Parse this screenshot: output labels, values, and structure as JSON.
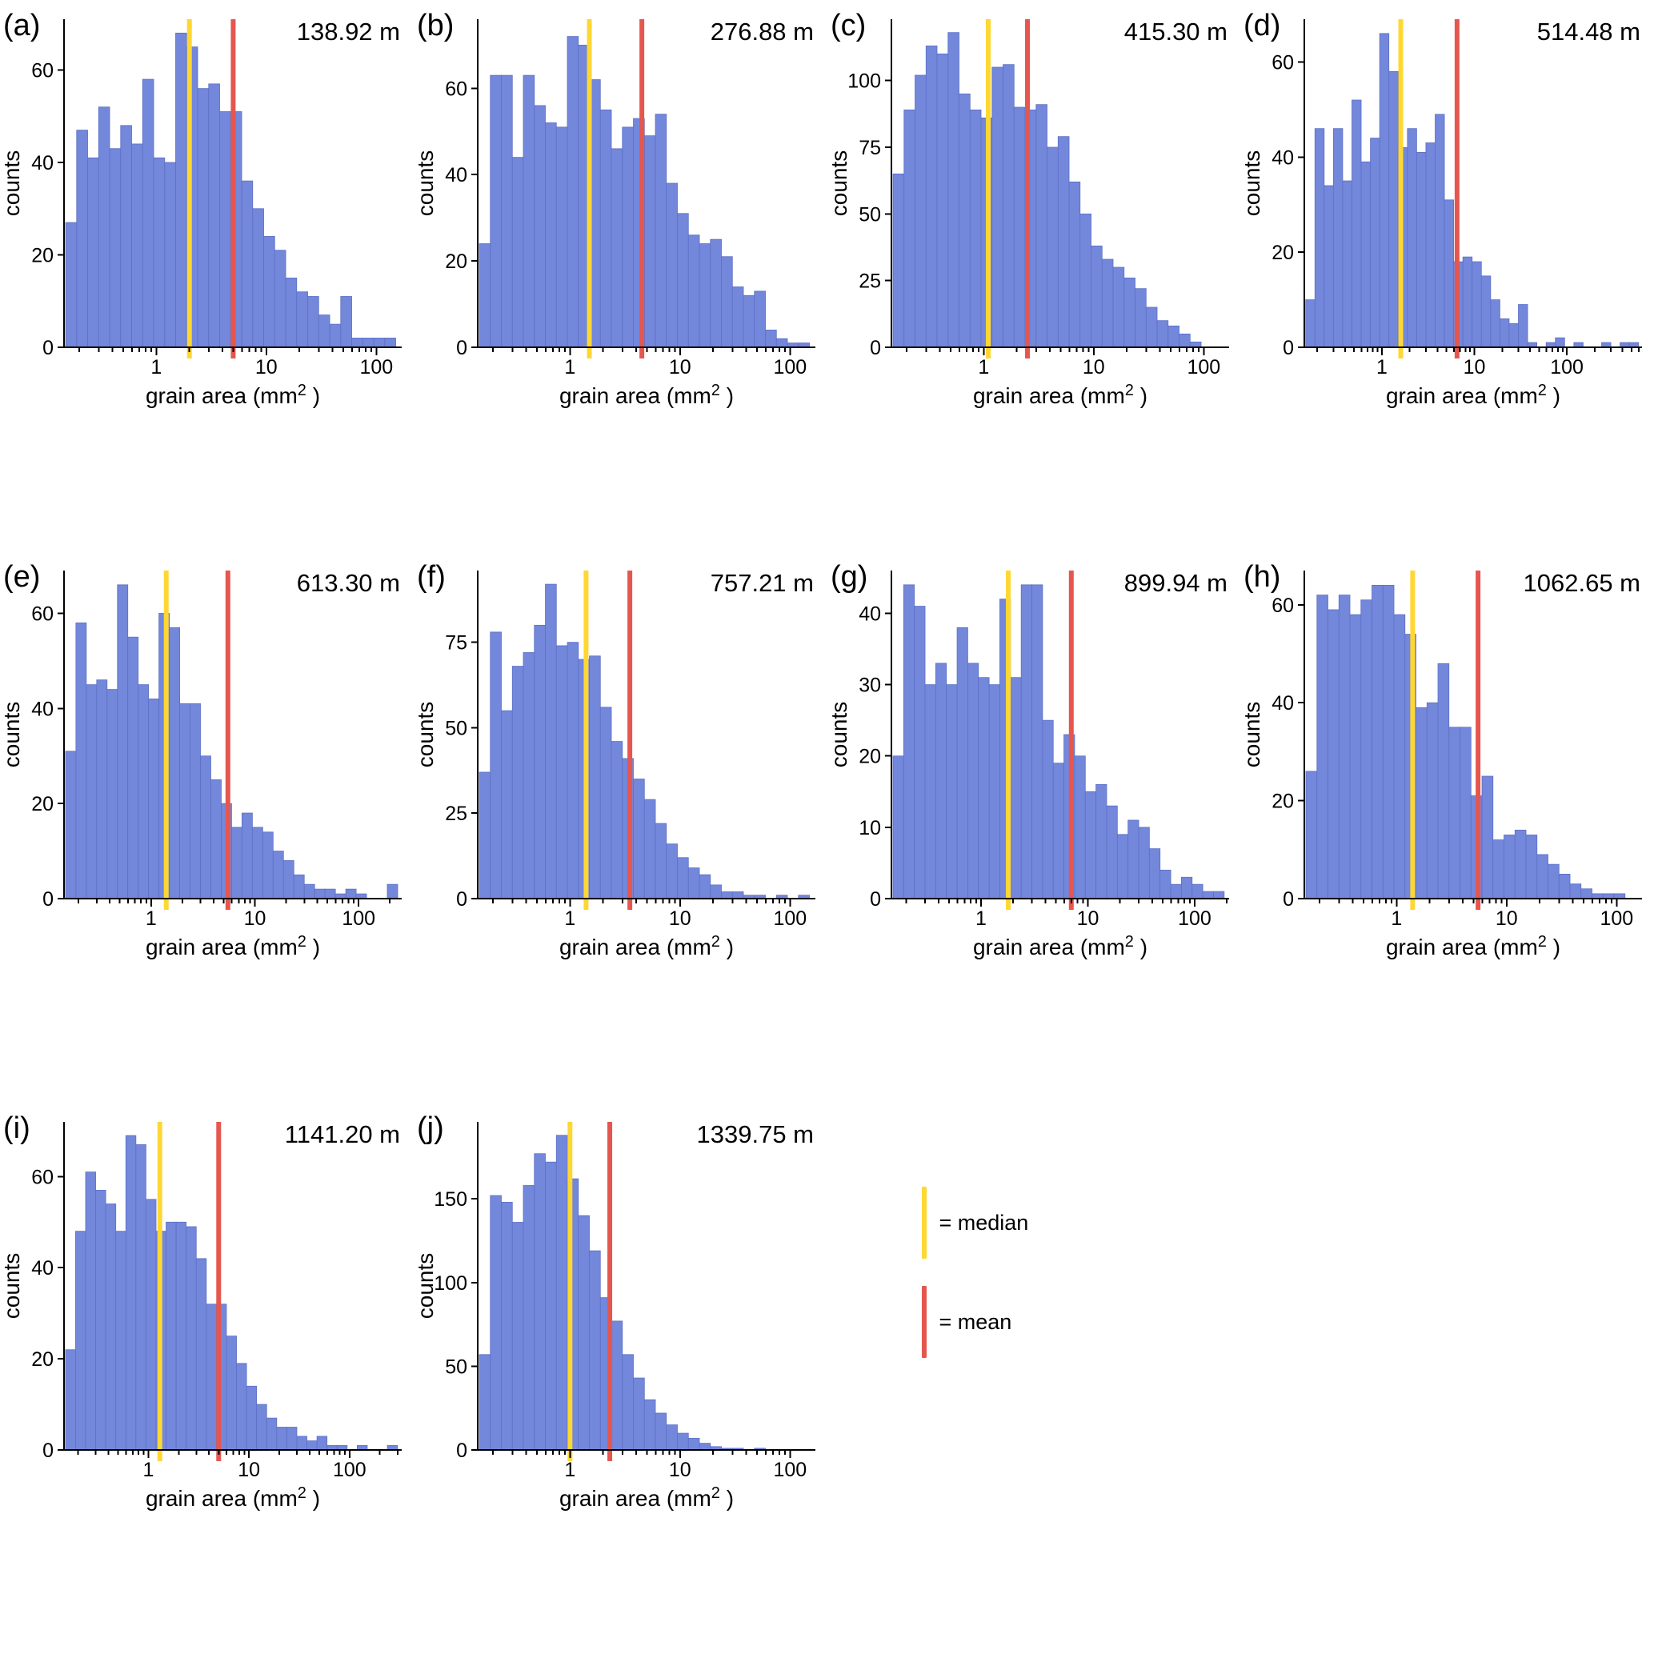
{
  "colors": {
    "bar_fill": "#7387DB",
    "bar_stroke": "#5C70C5",
    "median": "#FFD733",
    "mean": "#E5574E",
    "axis": "#000000"
  },
  "axis_labels": {
    "x_pre": "grain area (mm",
    "x_sup": "2",
    "x_post": " )",
    "ylabel": "counts"
  },
  "legend": {
    "median_label": "= median",
    "mean_label": "= mean"
  },
  "chart_data": [
    {
      "type": "bar",
      "bar_type": "histogram",
      "panel": "(a)",
      "depth_label": "138.92 m",
      "xlabel": "grain area (mm2 )",
      "ylabel": "counts",
      "xscale": "log",
      "xlim": [
        0.145,
        170
      ],
      "ylim": [
        0,
        71
      ],
      "yticks": [
        0,
        20,
        40,
        60
      ],
      "xticks": [
        1,
        10,
        100
      ],
      "bin_start": 0.15,
      "bins_per_decade": 10,
      "counts": [
        27,
        47,
        41,
        52,
        43,
        48,
        44,
        58,
        41,
        40,
        68,
        65,
        56,
        57,
        51,
        51,
        36,
        30,
        24,
        21,
        15,
        12,
        11,
        7,
        5,
        11,
        2,
        2,
        2,
        2
      ],
      "median": 2.0,
      "mean": 5.0
    },
    {
      "type": "bar",
      "bar_type": "histogram",
      "panel": "(b)",
      "depth_label": "276.88 m",
      "xlabel": "grain area (mm2 )",
      "ylabel": "counts",
      "xscale": "log",
      "xlim": [
        0.145,
        170
      ],
      "ylim": [
        0,
        76
      ],
      "yticks": [
        0,
        20,
        40,
        60
      ],
      "xticks": [
        1,
        10,
        100
      ],
      "bin_start": 0.15,
      "bins_per_decade": 10,
      "counts": [
        24,
        63,
        63,
        44,
        63,
        56,
        52,
        51,
        72,
        70,
        62,
        55,
        46,
        51,
        53,
        49,
        54,
        38,
        31,
        26,
        24,
        25,
        21,
        14,
        12,
        13,
        4,
        2,
        1,
        1
      ],
      "median": 1.5,
      "mean": 4.5
    },
    {
      "type": "bar",
      "bar_type": "histogram",
      "panel": "(c)",
      "depth_label": "415.30 m",
      "xlabel": "grain area (mm2 )",
      "ylabel": "counts",
      "xscale": "log",
      "xlim": [
        0.145,
        170
      ],
      "ylim": [
        0,
        123
      ],
      "yticks": [
        0,
        25,
        50,
        75,
        100
      ],
      "xticks": [
        1,
        10,
        100
      ],
      "bin_start": 0.15,
      "bins_per_decade": 10,
      "counts": [
        65,
        89,
        102,
        113,
        110,
        118,
        95,
        89,
        86,
        105,
        106,
        90,
        89,
        91,
        75,
        79,
        62,
        50,
        38,
        33,
        30,
        26,
        22,
        15,
        10,
        8,
        5,
        2
      ],
      "median": 1.1,
      "mean": 2.5
    },
    {
      "type": "bar",
      "bar_type": "histogram",
      "panel": "(d)",
      "depth_label": "514.48 m",
      "xlabel": "grain area (mm2 )",
      "ylabel": "counts",
      "xscale": "log",
      "xlim": [
        0.145,
        650
      ],
      "ylim": [
        0,
        69
      ],
      "yticks": [
        0,
        20,
        40,
        60
      ],
      "xticks": [
        1,
        10,
        100
      ],
      "bin_start": 0.15,
      "bins_per_decade": 10,
      "counts": [
        10,
        46,
        34,
        46,
        35,
        52,
        39,
        44,
        66,
        58,
        42,
        46,
        41,
        43,
        49,
        31,
        18,
        19,
        18,
        15,
        10,
        6,
        5,
        9,
        1,
        0,
        1,
        2,
        0,
        1,
        0,
        0,
        1,
        0,
        1,
        1
      ],
      "median": 1.6,
      "mean": 6.5
    },
    {
      "type": "bar",
      "bar_type": "histogram",
      "panel": "(e)",
      "depth_label": "613.30 m",
      "xlabel": "grain area (mm2 )",
      "ylabel": "counts",
      "xscale": "log",
      "xlim": [
        0.145,
        260
      ],
      "ylim": [
        0,
        69
      ],
      "yticks": [
        0,
        20,
        40,
        60
      ],
      "xticks": [
        1,
        10,
        100
      ],
      "bin_start": 0.15,
      "bins_per_decade": 10,
      "counts": [
        31,
        58,
        45,
        46,
        44,
        66,
        55,
        45,
        42,
        60,
        57,
        41,
        41,
        30,
        25,
        20,
        15,
        18,
        15,
        14,
        10,
        8,
        5,
        3,
        2,
        2,
        1,
        2,
        1,
        0,
        0,
        3
      ],
      "median": 1.4,
      "mean": 5.5
    },
    {
      "type": "bar",
      "bar_type": "histogram",
      "panel": "(f)",
      "depth_label": "757.21 m",
      "xlabel": "grain area (mm2 )",
      "ylabel": "counts",
      "xscale": "log",
      "xlim": [
        0.145,
        170
      ],
      "ylim": [
        0,
        96
      ],
      "yticks": [
        0,
        25,
        50,
        75
      ],
      "xticks": [
        1,
        10,
        100
      ],
      "bin_start": 0.15,
      "bins_per_decade": 10,
      "counts": [
        37,
        78,
        55,
        68,
        72,
        80,
        92,
        74,
        75,
        70,
        71,
        56,
        46,
        41,
        35,
        29,
        22,
        16,
        12,
        9,
        7,
        4,
        2,
        2,
        1,
        1,
        0,
        1,
        0,
        1
      ],
      "median": 1.4,
      "mean": 3.5
    },
    {
      "type": "bar",
      "bar_type": "histogram",
      "panel": "(g)",
      "depth_label": "899.94 m",
      "xlabel": "grain area (mm2 )",
      "ylabel": "counts",
      "xscale": "log",
      "xlim": [
        0.145,
        210
      ],
      "ylim": [
        0,
        46
      ],
      "yticks": [
        0,
        10,
        20,
        30,
        40
      ],
      "xticks": [
        1,
        10,
        100
      ],
      "bin_start": 0.15,
      "bins_per_decade": 10,
      "counts": [
        20,
        44,
        41,
        30,
        33,
        30,
        38,
        33,
        31,
        30,
        42,
        31,
        44,
        44,
        25,
        19,
        23,
        20,
        15,
        16,
        13,
        9,
        11,
        10,
        7,
        4,
        2,
        3,
        2,
        1,
        1
      ],
      "median": 1.8,
      "mean": 7.0
    },
    {
      "type": "bar",
      "bar_type": "histogram",
      "panel": "(h)",
      "depth_label": "1062.65 m",
      "xlabel": "grain area (mm2 )",
      "ylabel": "counts",
      "xscale": "log",
      "xlim": [
        0.145,
        170
      ],
      "ylim": [
        0,
        67
      ],
      "yticks": [
        0,
        20,
        40,
        60
      ],
      "xticks": [
        1,
        10,
        100
      ],
      "bin_start": 0.15,
      "bins_per_decade": 10,
      "counts": [
        26,
        62,
        59,
        62,
        58,
        61,
        64,
        64,
        58,
        54,
        39,
        40,
        48,
        35,
        35,
        21,
        25,
        12,
        13,
        14,
        13,
        9,
        7,
        5,
        3,
        2,
        1,
        1,
        1,
        0
      ],
      "median": 1.4,
      "mean": 5.5
    },
    {
      "type": "bar",
      "bar_type": "histogram",
      "panel": "(i)",
      "depth_label": "1141.20 m",
      "xlabel": "grain area (mm2 )",
      "ylabel": "counts",
      "xscale": "log",
      "xlim": [
        0.145,
        330
      ],
      "ylim": [
        0,
        72
      ],
      "yticks": [
        0,
        20,
        40,
        60
      ],
      "xticks": [
        1,
        10,
        100
      ],
      "bin_start": 0.15,
      "bins_per_decade": 10,
      "counts": [
        22,
        48,
        61,
        57,
        54,
        48,
        69,
        67,
        55,
        48,
        50,
        50,
        49,
        42,
        32,
        32,
        25,
        19,
        14,
        10,
        7,
        5,
        5,
        3,
        2,
        3,
        1,
        1,
        0,
        1,
        0,
        0,
        1
      ],
      "median": 1.3,
      "mean": 5.0
    },
    {
      "type": "bar",
      "bar_type": "histogram",
      "panel": "(j)",
      "depth_label": "1339.75 m",
      "xlabel": "grain area (mm2 )",
      "ylabel": "counts",
      "xscale": "log",
      "xlim": [
        0.145,
        170
      ],
      "ylim": [
        0,
        196
      ],
      "yticks": [
        0,
        50,
        100,
        150
      ],
      "xticks": [
        1,
        10,
        100
      ],
      "bin_start": 0.15,
      "bins_per_decade": 10,
      "counts": [
        57,
        152,
        148,
        136,
        158,
        177,
        172,
        188,
        162,
        140,
        119,
        91,
        77,
        57,
        43,
        30,
        22,
        15,
        10,
        7,
        4,
        2,
        1,
        1,
        0,
        1
      ],
      "median": 1.0,
      "mean": 2.3
    }
  ]
}
